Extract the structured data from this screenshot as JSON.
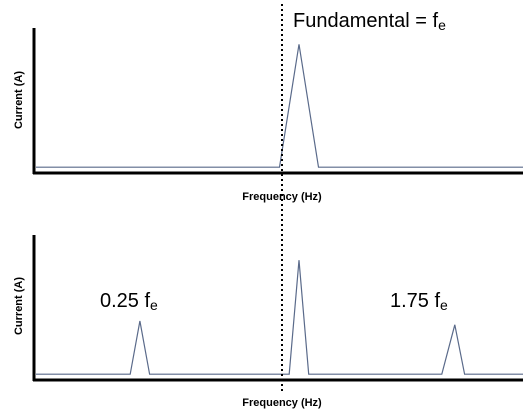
{
  "chart_data": [
    {
      "type": "line",
      "xlabel": "Frequency (Hz)",
      "ylabel": "Current (A)",
      "annotation": {
        "prefix": "Fundamental = f",
        "subscript": "e"
      },
      "x": [
        0,
        0.75,
        0.81,
        0.87,
        1.5
      ],
      "y": [
        0.03,
        0.03,
        1.0,
        0.03,
        0.03
      ],
      "xlim": [
        0,
        1.5
      ],
      "ylim": [
        0,
        1.05
      ],
      "grid": false
    },
    {
      "type": "line",
      "xlabel": "Frequency (Hz)",
      "ylabel": "Current (A)",
      "annotations": [
        {
          "prefix": "0.25 f",
          "subscript": "e"
        },
        {
          "prefix": "1.75 f",
          "subscript": "e"
        }
      ],
      "x": [
        0,
        0.29,
        0.32,
        0.35,
        0.75,
        0.78,
        0.81,
        0.84,
        0.87,
        1.25,
        1.29,
        1.32,
        1.5
      ],
      "y": [
        0.03,
        0.03,
        0.45,
        0.03,
        0.03,
        0.03,
        0.93,
        0.03,
        0.03,
        0.03,
        0.42,
        0.03,
        0.03
      ],
      "xlim": [
        0,
        1.5
      ],
      "ylim": [
        0,
        1.05
      ],
      "grid": false
    }
  ],
  "marker": {
    "x": 0.81,
    "style": "dotted"
  },
  "colors": {
    "trace": "#5a6a8a",
    "axis": "#000000",
    "marker": "#000000"
  }
}
